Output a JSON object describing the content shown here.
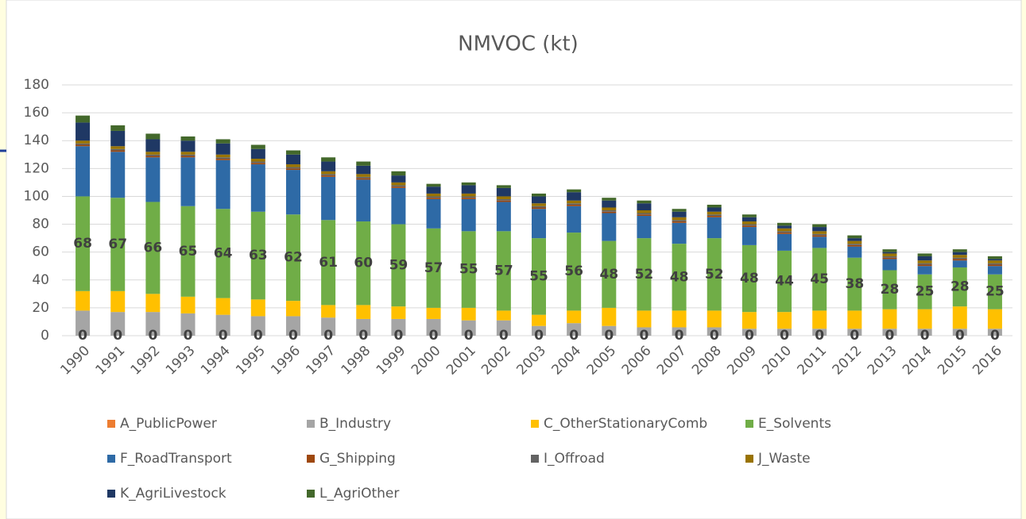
{
  "chart_data": {
    "type": "stacked_bar",
    "title": "NMVOC (kt)",
    "categories": [
      "1990",
      "1991",
      "1992",
      "1993",
      "1994",
      "1995",
      "1996",
      "1997",
      "1998",
      "1999",
      "2000",
      "2001",
      "2002",
      "2003",
      "2004",
      "2005",
      "2006",
      "2007",
      "2008",
      "2009",
      "2010",
      "2011",
      "2012",
      "2013",
      "2014",
      "2015",
      "2016"
    ],
    "ylim": [
      0,
      180
    ],
    "yticks": [
      0,
      20,
      40,
      60,
      80,
      100,
      120,
      140,
      160,
      180
    ],
    "grid": true,
    "legend": "bottom",
    "series": [
      {
        "name": "A_PublicPower",
        "color": "#ed7d31",
        "values": [
          0,
          0,
          0,
          0,
          0,
          0,
          0,
          0,
          0,
          0,
          0,
          0,
          0,
          0,
          0,
          0,
          0,
          0,
          0,
          0,
          0,
          0,
          0,
          0,
          0,
          0,
          0
        ]
      },
      {
        "name": "B_Industry",
        "color": "#a5a5a5",
        "values": [
          18,
          17,
          17,
          16,
          15,
          14,
          14,
          13,
          12,
          12,
          12,
          11,
          11,
          7,
          9,
          7,
          6,
          6,
          6,
          5,
          5,
          5,
          5,
          5,
          5,
          5,
          5
        ]
      },
      {
        "name": "C_OtherStationaryComb",
        "color": "#ffc000",
        "values": [
          14,
          15,
          13,
          12,
          12,
          12,
          11,
          9,
          10,
          9,
          8,
          9,
          7,
          8,
          9,
          13,
          12,
          12,
          12,
          12,
          12,
          13,
          13,
          14,
          14,
          16,
          14
        ]
      },
      {
        "name": "E_Solvents",
        "color": "#70ad47",
        "values": [
          68,
          67,
          66,
          65,
          64,
          63,
          62,
          61,
          60,
          59,
          57,
          55,
          57,
          55,
          56,
          48,
          52,
          48,
          52,
          48,
          44,
          45,
          38,
          28,
          25,
          28,
          25
        ]
      },
      {
        "name": "F_RoadTransport",
        "color": "#2e6aa6",
        "values": [
          36,
          33,
          32,
          35,
          35,
          34,
          32,
          31,
          30,
          26,
          21,
          23,
          21,
          21,
          19,
          20,
          16,
          15,
          15,
          13,
          12,
          8,
          8,
          8,
          6,
          5,
          6
        ]
      },
      {
        "name": "G_Shipping",
        "color": "#9e480e",
        "values": [
          1,
          1,
          1,
          1,
          1,
          1,
          1,
          1,
          1,
          1,
          1,
          1,
          1,
          1,
          1,
          1,
          1,
          1,
          1,
          1,
          1,
          1,
          1,
          1,
          1,
          1,
          1
        ]
      },
      {
        "name": "I_Offroad",
        "color": "#636363",
        "values": [
          1,
          1,
          1,
          1,
          1,
          1,
          1,
          1,
          1,
          1,
          1,
          1,
          1,
          1,
          1,
          1,
          1,
          1,
          1,
          1,
          1,
          1,
          1,
          1,
          1,
          1,
          1
        ]
      },
      {
        "name": "J_Waste",
        "color": "#997300",
        "values": [
          2,
          2,
          2,
          2,
          2,
          2,
          2,
          2,
          2,
          2,
          2,
          2,
          2,
          2,
          2,
          2,
          2,
          2,
          2,
          2,
          2,
          2,
          2,
          2,
          2,
          2,
          2
        ]
      },
      {
        "name": "K_AgriLivestock",
        "color": "#1f3864",
        "values": [
          13,
          11,
          9,
          8,
          8,
          7,
          7,
          7,
          6,
          5,
          5,
          6,
          6,
          5,
          6,
          5,
          5,
          4,
          3,
          3,
          2,
          3,
          2,
          1,
          3,
          2,
          1
        ]
      },
      {
        "name": "L_AgriOther",
        "color": "#43682b",
        "values": [
          5,
          4,
          4,
          3,
          3,
          3,
          3,
          3,
          3,
          3,
          2,
          2,
          2,
          2,
          2,
          2,
          2,
          2,
          2,
          2,
          2,
          2,
          2,
          2,
          2,
          2,
          2
        ]
      }
    ],
    "labeled_series": [
      0,
      3
    ]
  }
}
